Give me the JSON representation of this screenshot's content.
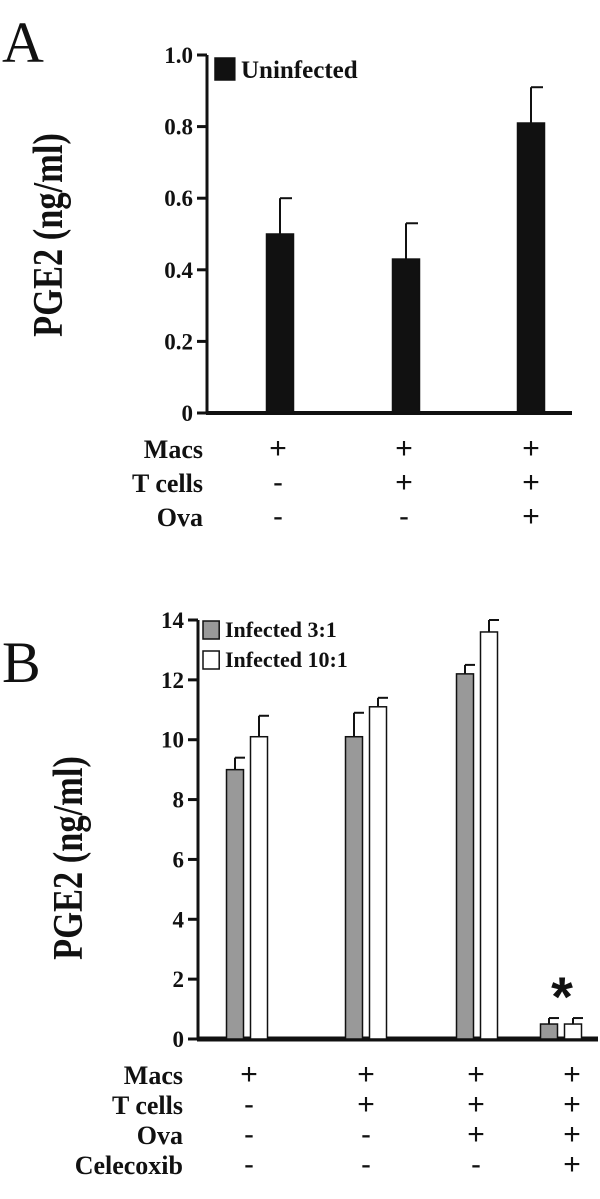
{
  "chart_data": [
    {
      "panel": "A",
      "type": "bar",
      "ylabel": "PGE2 (ng/ml)",
      "ylim": [
        0,
        1.0
      ],
      "yticks": [
        "0",
        "0.2",
        "0.4",
        "0.6",
        "0.8",
        "1.0"
      ],
      "categories": [
        "1",
        "2",
        "3"
      ],
      "series": [
        {
          "name": "Uninfected",
          "color": "#111111",
          "values": [
            0.5,
            0.43,
            0.81
          ],
          "errors": [
            0.1,
            0.1,
            0.1
          ]
        }
      ],
      "rows": [
        {
          "label": "Macs",
          "signs": [
            "+",
            "+",
            "+"
          ]
        },
        {
          "label": "T cells",
          "signs": [
            "-",
            "+",
            "+"
          ]
        },
        {
          "label": "Ova",
          "signs": [
            "-",
            "-",
            "+"
          ]
        }
      ],
      "legend": "top-left"
    },
    {
      "panel": "B",
      "type": "bar",
      "ylabel": "PGE2 (ng/ml)",
      "ylim": [
        0,
        14
      ],
      "yticks": [
        "0",
        "2",
        "4",
        "6",
        "8",
        "10",
        "12",
        "14"
      ],
      "categories": [
        "1",
        "2",
        "3",
        "4"
      ],
      "series": [
        {
          "name": "Infected 3:1",
          "color": "#999999",
          "values": [
            9.0,
            10.1,
            12.2,
            0.5
          ],
          "errors": [
            0.4,
            0.8,
            0.3,
            0.2
          ]
        },
        {
          "name": "Infected 10:1",
          "color": "#ffffff",
          "values": [
            10.1,
            11.1,
            13.6,
            0.5
          ],
          "errors": [
            0.7,
            0.3,
            0.4,
            0.2
          ]
        }
      ],
      "annotation": "*",
      "rows": [
        {
          "label": "Macs",
          "signs": [
            "+",
            "+",
            "+",
            "+"
          ]
        },
        {
          "label": "T cells",
          "signs": [
            "-",
            "+",
            "+",
            "+"
          ]
        },
        {
          "label": "Ova",
          "signs": [
            "-",
            "-",
            "+",
            "+"
          ]
        },
        {
          "label": "Celecoxib",
          "signs": [
            "-",
            "-",
            "-",
            "+"
          ]
        }
      ],
      "legend": "top-left"
    }
  ]
}
